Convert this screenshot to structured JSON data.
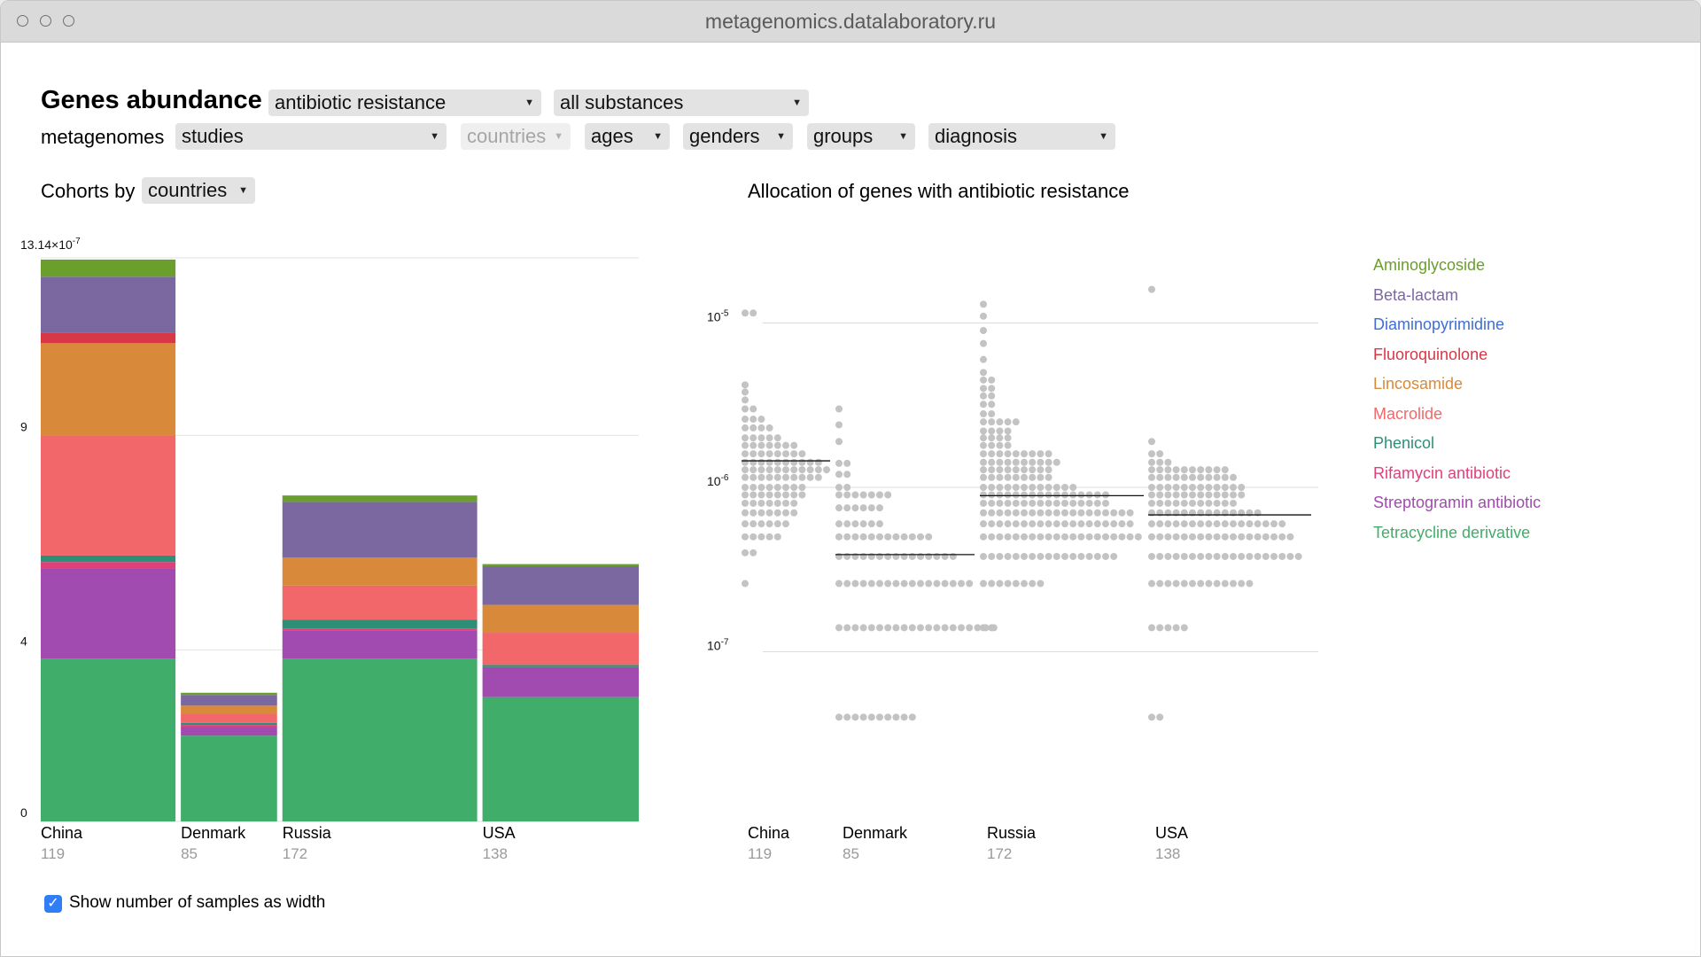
{
  "window": {
    "url": "metagenomics.datalaboratory.ru"
  },
  "header": {
    "title": "Genes abundance",
    "category_select": "antibiotic resistance",
    "substance_select": "all substances",
    "metagenomes_label": "metagenomes",
    "filters": {
      "studies": "studies",
      "countries": "countries",
      "ages": "ages",
      "genders": "genders",
      "groups": "groups",
      "diagnosis": "diagnosis"
    }
  },
  "cohorts": {
    "label": "Cohorts by",
    "select": "countries"
  },
  "right_panel": {
    "title": "Allocation of genes with antibiotic resistance"
  },
  "show_width": {
    "label": "Show number of samples as width",
    "checked": true
  },
  "colors": {
    "Aminoglycoside": "#6a9e2d",
    "Beta-lactam": "#7b68a0",
    "Diaminopyrimidine": "#3f6ed6",
    "Fluoroquinolone": "#d63845",
    "Lincosamide": "#d8893a",
    "Macrolide": "#f2676a",
    "Phenicol": "#2e8f77",
    "Rifamycin antibiotic": "#e0407a",
    "Streptogramin antibiotic": "#a14aaf",
    "Tetracycline derivative": "#41ad6a"
  },
  "chart_data": [
    {
      "type": "bar",
      "stacked": true,
      "width_encodes": "number of samples",
      "categories": [
        "China",
        "Denmark",
        "Russia",
        "USA"
      ],
      "samples": [
        119,
        85,
        172,
        138
      ],
      "y_tick_labels": [
        "0",
        "4",
        "9",
        "13.14×10"
      ],
      "y_top_exponent": "-7",
      "ylim": [
        0,
        13.14
      ],
      "grid": true,
      "series": [
        {
          "name": "Tetracycline derivative",
          "values": [
            3.8,
            2.0,
            3.8,
            2.9
          ]
        },
        {
          "name": "Streptogramin antibiotic",
          "values": [
            2.1,
            0.2,
            0.65,
            0.7
          ]
        },
        {
          "name": "Rifamycin antibiotic",
          "values": [
            0.15,
            0.05,
            0.05,
            0.0
          ]
        },
        {
          "name": "Phenicol",
          "values": [
            0.15,
            0.05,
            0.2,
            0.05
          ]
        },
        {
          "name": "Macrolide",
          "values": [
            2.8,
            0.2,
            0.8,
            0.75
          ]
        },
        {
          "name": "Lincosamide",
          "values": [
            2.15,
            0.2,
            0.65,
            0.65
          ]
        },
        {
          "name": "Fluoroquinolone",
          "values": [
            0.25,
            0.0,
            0.0,
            0.0
          ]
        },
        {
          "name": "Beta-lactam",
          "values": [
            1.3,
            0.25,
            1.3,
            0.9
          ]
        },
        {
          "name": "Aminoglycoside",
          "values": [
            0.4,
            0.05,
            0.15,
            0.05
          ]
        }
      ]
    },
    {
      "type": "scatter",
      "title": "Allocation of genes with antibiotic resistance",
      "log_scale": true,
      "y_tick_labels": [
        "10",
        "10",
        "10"
      ],
      "y_tick_exponents": [
        "-5",
        "-6",
        "-7"
      ],
      "ylim": [
        3e-08,
        2e-05
      ],
      "categories": [
        "China",
        "Denmark",
        "Russia",
        "USA"
      ],
      "samples": [
        119,
        85,
        172,
        138
      ],
      "medians": [
        1.45e-06,
        3.9e-07,
        8.9e-07,
        6.8e-07
      ],
      "point_groups": [
        [
          {
            "v": 1.15e-05,
            "n": 2
          },
          {
            "v": 4.2e-06,
            "n": 1
          },
          {
            "v": 3.8e-06,
            "n": 1
          },
          {
            "v": 3.4e-06,
            "n": 1
          },
          {
            "v": 3e-06,
            "n": 2
          },
          {
            "v": 2.6e-06,
            "n": 3
          },
          {
            "v": 2.3e-06,
            "n": 4
          },
          {
            "v": 2e-06,
            "n": 5
          },
          {
            "v": 1.8e-06,
            "n": 7
          },
          {
            "v": 1.6e-06,
            "n": 8
          },
          {
            "v": 1.42e-06,
            "n": 10
          },
          {
            "v": 1.28e-06,
            "n": 11
          },
          {
            "v": 1.15e-06,
            "n": 10
          },
          {
            "v": 1e-06,
            "n": 8
          },
          {
            "v": 9e-07,
            "n": 8
          },
          {
            "v": 8e-07,
            "n": 7
          },
          {
            "v": 7e-07,
            "n": 7
          },
          {
            "v": 6e-07,
            "n": 6
          },
          {
            "v": 5e-07,
            "n": 5
          },
          {
            "v": 4e-07,
            "n": 2
          },
          {
            "v": 2.6e-07,
            "n": 1
          }
        ],
        [
          {
            "v": 3e-06,
            "n": 1
          },
          {
            "v": 2.4e-06,
            "n": 1
          },
          {
            "v": 1.9e-06,
            "n": 1
          },
          {
            "v": 1.4e-06,
            "n": 2
          },
          {
            "v": 1.2e-06,
            "n": 2
          },
          {
            "v": 1e-06,
            "n": 2
          },
          {
            "v": 9e-07,
            "n": 7
          },
          {
            "v": 7.5e-07,
            "n": 6
          },
          {
            "v": 6e-07,
            "n": 6
          },
          {
            "v": 5e-07,
            "n": 12
          },
          {
            "v": 3.8e-07,
            "n": 15
          },
          {
            "v": 2.6e-07,
            "n": 17
          },
          {
            "v": 1.4e-07,
            "n": 20
          },
          {
            "v": 4e-08,
            "n": 10
          }
        ],
        [
          {
            "v": 1.3e-05,
            "n": 1
          },
          {
            "v": 1.1e-05,
            "n": 1
          },
          {
            "v": 9e-06,
            "n": 1
          },
          {
            "v": 7.5e-06,
            "n": 1
          },
          {
            "v": 6e-06,
            "n": 1
          },
          {
            "v": 5e-06,
            "n": 1
          },
          {
            "v": 4.5e-06,
            "n": 2
          },
          {
            "v": 4e-06,
            "n": 2
          },
          {
            "v": 3.6e-06,
            "n": 2
          },
          {
            "v": 3.2e-06,
            "n": 2
          },
          {
            "v": 2.8e-06,
            "n": 2
          },
          {
            "v": 2.5e-06,
            "n": 5
          },
          {
            "v": 2.2e-06,
            "n": 4
          },
          {
            "v": 2e-06,
            "n": 4
          },
          {
            "v": 1.8e-06,
            "n": 4
          },
          {
            "v": 1.6e-06,
            "n": 9
          },
          {
            "v": 1.42e-06,
            "n": 10
          },
          {
            "v": 1.28e-06,
            "n": 9
          },
          {
            "v": 1.15e-06,
            "n": 9
          },
          {
            "v": 1e-06,
            "n": 12
          },
          {
            "v": 9e-07,
            "n": 16
          },
          {
            "v": 8e-07,
            "n": 16
          },
          {
            "v": 7e-07,
            "n": 19
          },
          {
            "v": 6e-07,
            "n": 19
          },
          {
            "v": 5e-07,
            "n": 20
          },
          {
            "v": 3.8e-07,
            "n": 17
          },
          {
            "v": 2.6e-07,
            "n": 8
          },
          {
            "v": 1.4e-07,
            "n": 2
          }
        ],
        [
          {
            "v": 1.6e-05,
            "n": 1
          },
          {
            "v": 1.9e-06,
            "n": 1
          },
          {
            "v": 1.6e-06,
            "n": 2
          },
          {
            "v": 1.42e-06,
            "n": 3
          },
          {
            "v": 1.28e-06,
            "n": 10
          },
          {
            "v": 1.15e-06,
            "n": 11
          },
          {
            "v": 1e-06,
            "n": 12
          },
          {
            "v": 9e-07,
            "n": 12
          },
          {
            "v": 8e-07,
            "n": 11
          },
          {
            "v": 7e-07,
            "n": 14
          },
          {
            "v": 6e-07,
            "n": 17
          },
          {
            "v": 5e-07,
            "n": 18
          },
          {
            "v": 3.8e-07,
            "n": 19
          },
          {
            "v": 2.6e-07,
            "n": 13
          },
          {
            "v": 1.4e-07,
            "n": 5
          },
          {
            "v": 4e-08,
            "n": 2
          }
        ]
      ]
    }
  ]
}
